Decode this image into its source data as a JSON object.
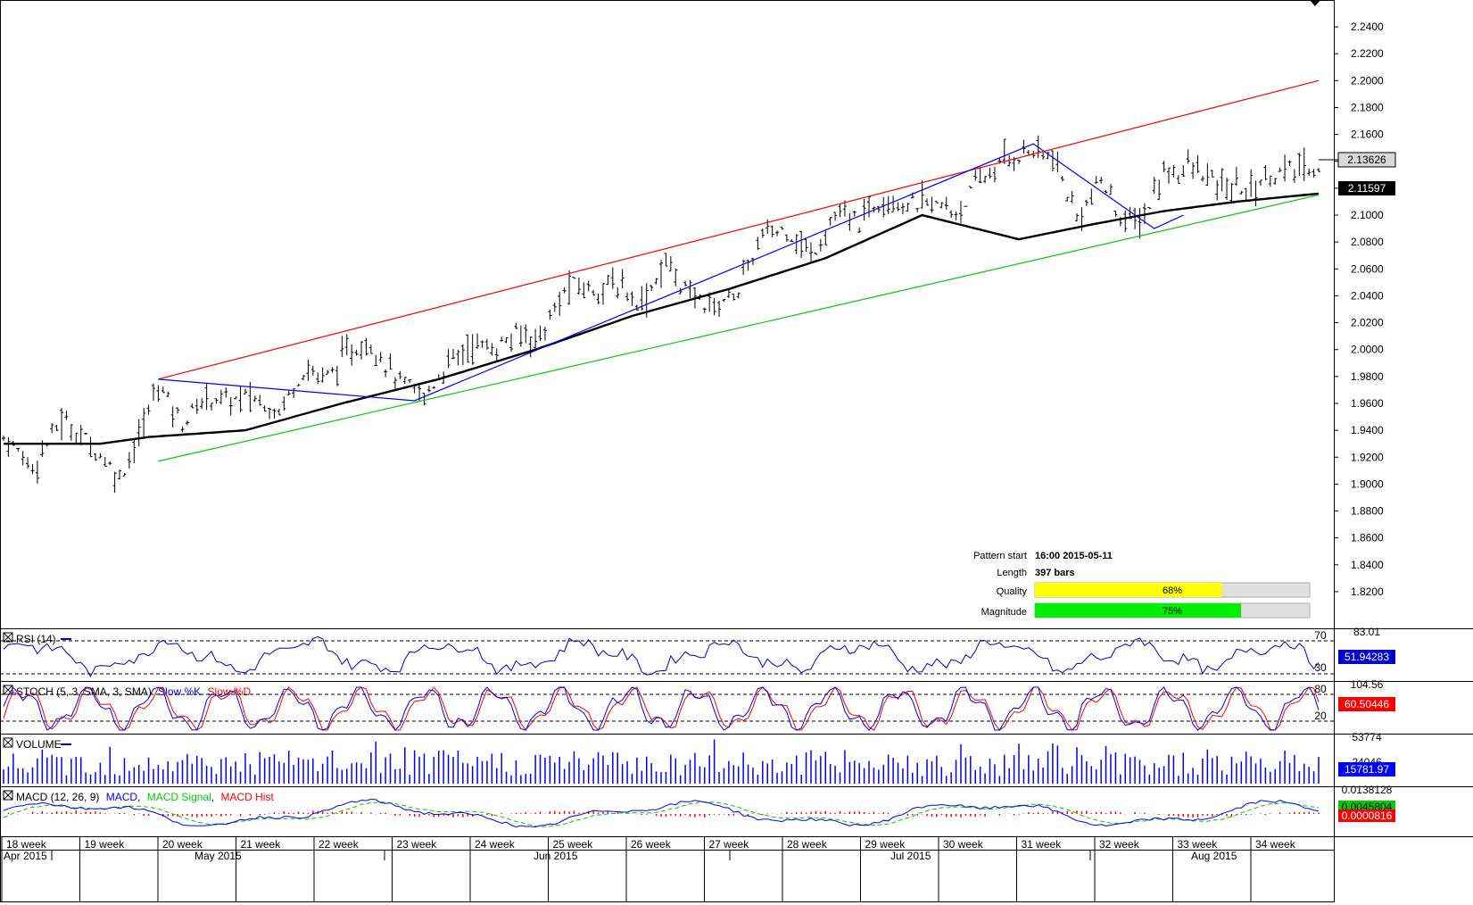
{
  "chart_data": {
    "type": "ohlc",
    "instrument_hint": "",
    "price_axis": {
      "ylim": [
        1.81,
        2.25
      ],
      "ticks": [
        "2.2400",
        "2.2200",
        "2.2000",
        "2.1800",
        "2.1600",
        "2.1400",
        "2.1200",
        "2.1000",
        "2.0800",
        "2.0600",
        "2.0400",
        "2.0200",
        "2.0000",
        "1.9800",
        "1.9600",
        "1.9400",
        "1.9200",
        "1.9000",
        "1.8800",
        "1.8600",
        "1.8400",
        "1.8200"
      ],
      "current_price": "2.13626",
      "sma_value": "2.11597"
    },
    "price_path": [
      [
        0,
        1.935
      ],
      [
        6,
        1.913
      ],
      [
        12,
        1.948
      ],
      [
        18,
        1.93
      ],
      [
        24,
        1.905
      ],
      [
        28,
        1.935
      ],
      [
        32,
        1.975
      ],
      [
        37,
        1.945
      ],
      [
        42,
        1.965
      ],
      [
        47,
        1.962
      ],
      [
        51,
        1.965
      ],
      [
        57,
        1.955
      ],
      [
        62,
        1.985
      ],
      [
        67,
        1.98
      ],
      [
        72,
        2.0
      ],
      [
        76,
        2.005
      ],
      [
        82,
        1.975
      ],
      [
        87,
        1.965
      ],
      [
        92,
        1.99
      ],
      [
        97,
        2.005
      ],
      [
        101,
        2.0
      ],
      [
        107,
        2.012
      ],
      [
        111,
        2.01
      ],
      [
        117,
        2.048
      ],
      [
        122,
        2.045
      ],
      [
        127,
        2.048
      ],
      [
        132,
        2.035
      ],
      [
        137,
        2.065
      ],
      [
        142,
        2.04
      ],
      [
        147,
        2.032
      ],
      [
        152,
        2.045
      ],
      [
        157,
        2.085
      ],
      [
        162,
        2.09
      ],
      [
        167,
        2.07
      ],
      [
        172,
        2.1
      ],
      [
        177,
        2.095
      ],
      [
        182,
        2.115
      ],
      [
        187,
        2.108
      ],
      [
        192,
        2.108
      ],
      [
        197,
        2.102
      ],
      [
        202,
        2.125
      ],
      [
        207,
        2.14
      ],
      [
        212,
        2.148
      ],
      [
        217,
        2.142
      ],
      [
        222,
        2.098
      ],
      [
        227,
        2.125
      ],
      [
        232,
        2.093
      ],
      [
        236,
        2.1
      ],
      [
        240,
        2.132
      ],
      [
        246,
        2.135
      ],
      [
        252,
        2.12
      ],
      [
        258,
        2.12
      ],
      [
        262,
        2.13
      ],
      [
        268,
        2.134
      ],
      [
        272,
        2.136
      ]
    ],
    "sma_path": [
      [
        0,
        1.93
      ],
      [
        20,
        1.93
      ],
      [
        30,
        1.935
      ],
      [
        50,
        1.94
      ],
      [
        70,
        1.96
      ],
      [
        90,
        1.978
      ],
      [
        110,
        2.0
      ],
      [
        130,
        2.025
      ],
      [
        150,
        2.045
      ],
      [
        170,
        2.068
      ],
      [
        190,
        2.1
      ],
      [
        210,
        2.082
      ],
      [
        225,
        2.093
      ],
      [
        240,
        2.103
      ],
      [
        255,
        2.11
      ],
      [
        272,
        2.116
      ]
    ],
    "pattern_lines": {
      "upper_channel": [
        [
          32,
          1.978
        ],
        [
          272,
          2.2
        ]
      ],
      "lower_channel": [
        [
          32,
          1.917
        ],
        [
          272,
          2.115
        ]
      ],
      "zigzag": [
        [
          32,
          1.978
        ],
        [
          85,
          1.962
        ],
        [
          213,
          2.153
        ],
        [
          238,
          2.09
        ],
        [
          244,
          2.1
        ]
      ]
    },
    "x_axis": {
      "weeks": [
        "18 week",
        "19 week",
        "20 week",
        "21 week",
        "22 week",
        "23 week",
        "24 week",
        "25 week",
        "26 week",
        "27 week",
        "28 week",
        "29 week",
        "30 week",
        "31 week",
        "32 week",
        "33 week",
        "34 week"
      ],
      "months": [
        "Apr 2015",
        "May 2015",
        "Jun 2015",
        "Jul 2015",
        "Aug 2015"
      ]
    },
    "pattern_info": {
      "start_label": "Pattern start",
      "start_value": "16:00 2015-05-11",
      "length_label": "Length",
      "length_value": "397 bars",
      "quality_label": "Quality",
      "quality_value": "68%",
      "quality_fraction": 0.68,
      "magnitude_label": "Magnitude",
      "magnitude_value": "75%",
      "magnitude_fraction": 0.75
    },
    "indicators": {
      "rsi": {
        "title": "RSI (14)",
        "top": "83.01",
        "level_high": "70",
        "level_low": "30",
        "value": "51.94283"
      },
      "stoch": {
        "title": "STOCH (5, 3, SMA, 3, SMA)",
        "k_label": "Slow %K",
        "d_label": "Slow %D",
        "top": "104.56",
        "level_high": "80",
        "level_low": "20",
        "value": "60.50446"
      },
      "volume": {
        "title": "VOLUME",
        "top": "53774",
        "mid": "24046",
        "value": "15781.97"
      },
      "macd": {
        "title": "MACD (12, 26, 9)",
        "macd_label": "MACD",
        "signal_label": "MACD Signal",
        "hist_label": "MACD Hist",
        "top": "0.0138128",
        "value1": "0.0045804",
        "value2": "0.0000816"
      }
    },
    "colors": {
      "upper_channel": "#ff0000",
      "lower_channel": "#00cc00",
      "zigzag": "#0000ff",
      "sma": "#000000",
      "quality_bar": "#ffff00",
      "magnitude_bar": "#00ee00",
      "rsi_line": "#0000cc",
      "stoch_k": "#0000ff",
      "stoch_d": "#ff0000",
      "volume": "#0000ff",
      "macd_line": "#0000ff",
      "macd_signal": "#00cc00",
      "macd_hist": "#ff0000"
    }
  }
}
